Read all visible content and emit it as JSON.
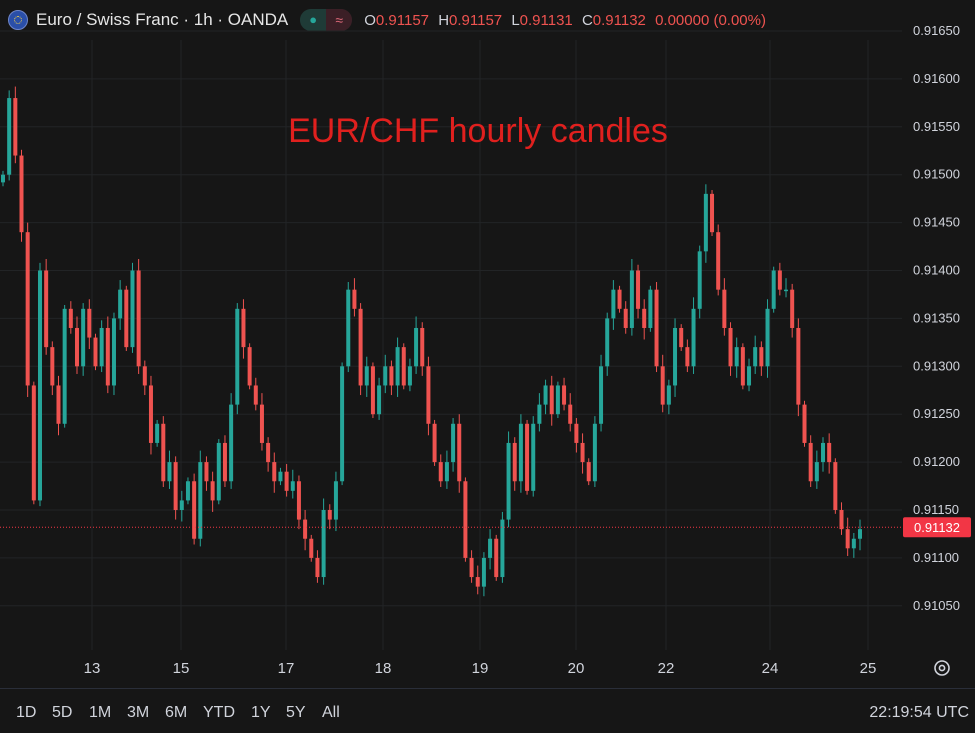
{
  "header": {
    "symbol": "Euro / Swiss Franc · 1h · OANDA",
    "flag_icon": "eu-ch-flag-icon",
    "o_label": "O",
    "o_value": "0.91157",
    "h_label": "H",
    "h_value": "0.91157",
    "l_label": "L",
    "l_value": "0.91131",
    "c_label": "C",
    "c_value": "0.91132",
    "change": "0.00000 (0.00%)"
  },
  "bottom": {
    "ranges": [
      "1D",
      "5D",
      "1M",
      "3M",
      "6M",
      "YTD",
      "1Y",
      "5Y",
      "All"
    ],
    "clock": "22:19:54 UTC"
  },
  "colors": {
    "up": "#26a69a",
    "down": "#ef5350",
    "annotation": "#e0201e",
    "price_tag": "#f23645"
  },
  "chart_data": {
    "type": "candlestick",
    "annotation": "EUR/CHF hourly candles",
    "current_price": "0.91132",
    "x_ticks": [
      "13",
      "15",
      "17",
      "18",
      "19",
      "20",
      "22",
      "24",
      "25"
    ],
    "y_ticks": [
      "0.91650",
      "0.91600",
      "0.91550",
      "0.91500",
      "0.91450",
      "0.91400",
      "0.91350",
      "0.91300",
      "0.91250",
      "0.91200",
      "0.91150",
      "0.91100",
      "0.91050"
    ],
    "ylim": [
      0.91005,
      0.91675
    ],
    "grid": true,
    "close": [
      0.915,
      0.9158,
      0.9152,
      0.9144,
      0.9128,
      0.9116,
      0.914,
      0.9132,
      0.9128,
      0.9124,
      0.9136,
      0.9134,
      0.913,
      0.9136,
      0.9133,
      0.913,
      0.9134,
      0.9128,
      0.9135,
      0.9138,
      0.9132,
      0.914,
      0.913,
      0.9128,
      0.9122,
      0.9124,
      0.9118,
      0.912,
      0.9115,
      0.9116,
      0.9118,
      0.9112,
      0.912,
      0.9118,
      0.9116,
      0.9122,
      0.9118,
      0.9126,
      0.9136,
      0.9132,
      0.9128,
      0.9126,
      0.9122,
      0.912,
      0.9118,
      0.9119,
      0.9117,
      0.9118,
      0.9114,
      0.9112,
      0.911,
      0.9108,
      0.9115,
      0.9114,
      0.9118,
      0.913,
      0.9138,
      0.9136,
      0.9128,
      0.913,
      0.9125,
      0.9128,
      0.913,
      0.9128,
      0.9132,
      0.9128,
      0.913,
      0.9134,
      0.913,
      0.9124,
      0.912,
      0.9118,
      0.912,
      0.9124,
      0.9118,
      0.911,
      0.9108,
      0.9107,
      0.911,
      0.9112,
      0.9108,
      0.9114,
      0.9122,
      0.9118,
      0.9124,
      0.9117,
      0.9124,
      0.9126,
      0.9128,
      0.9125,
      0.9128,
      0.9126,
      0.9124,
      0.9122,
      0.912,
      0.9118,
      0.9124,
      0.913,
      0.9135,
      0.9138,
      0.9136,
      0.9134,
      0.914,
      0.9136,
      0.9134,
      0.9138,
      0.913,
      0.9126,
      0.9128,
      0.9134,
      0.9132,
      0.913,
      0.9136,
      0.9142,
      0.9148,
      0.9144,
      0.9138,
      0.9134,
      0.913,
      0.9132,
      0.9128,
      0.913,
      0.9132,
      0.913,
      0.9136,
      0.914,
      0.9138,
      0.9138,
      0.9134,
      0.9126,
      0.9122,
      0.9118,
      0.912,
      0.9122,
      0.912,
      0.9115,
      0.9113,
      0.9111,
      0.9112,
      0.9113
    ]
  }
}
